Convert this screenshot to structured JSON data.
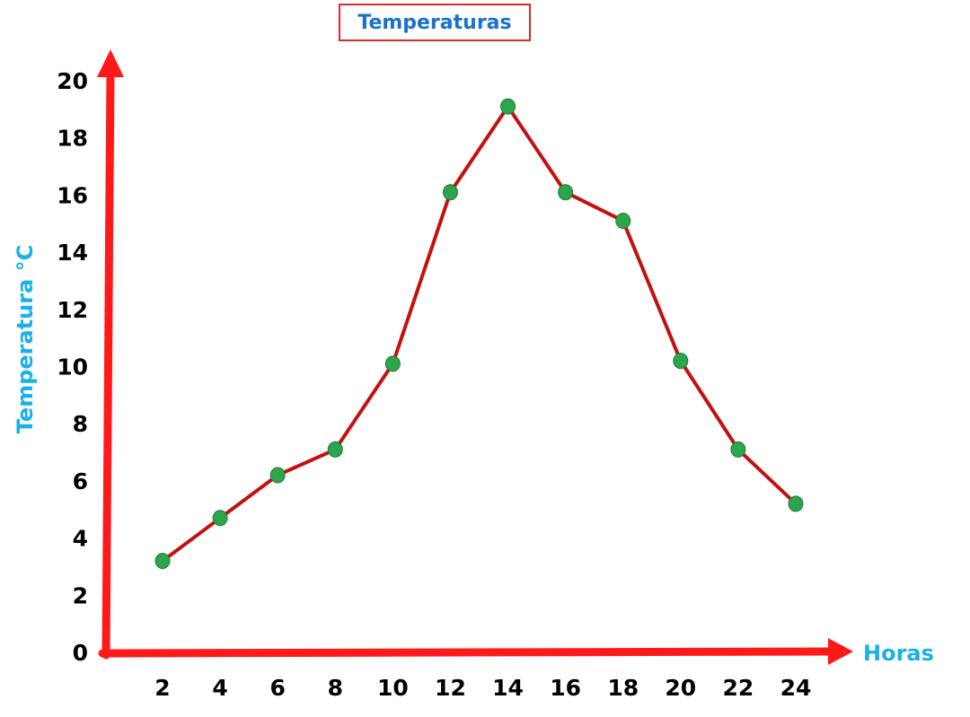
{
  "chart_data": {
    "type": "line",
    "title": "Temperaturas",
    "xlabel": "Horas",
    "ylabel": "Temperatura °C",
    "x": [
      2,
      4,
      6,
      8,
      10,
      12,
      14,
      16,
      18,
      20,
      22,
      24
    ],
    "y": [
      3.2,
      4.7,
      6.2,
      7.1,
      10.1,
      16.1,
      19.1,
      16.1,
      15.1,
      10.2,
      7.1,
      5.2
    ],
    "x_ticks": [
      "2",
      "4",
      "6",
      "8",
      "10",
      "12",
      "14",
      "16",
      "18",
      "20",
      "22",
      "24"
    ],
    "y_ticks": [
      "0",
      "2",
      "4",
      "6",
      "8",
      "10",
      "12",
      "14",
      "16",
      "18",
      "20"
    ],
    "ylim": [
      0,
      20
    ],
    "grid": false,
    "legend": "none"
  },
  "colors": {
    "axis": "#ff1a1a",
    "line": "#c41010",
    "marker": "#2ba64a",
    "title": "#1a73c9",
    "title_border": "#d92b2b",
    "axis_title": "#1ab0e8",
    "tick": "#000000"
  }
}
